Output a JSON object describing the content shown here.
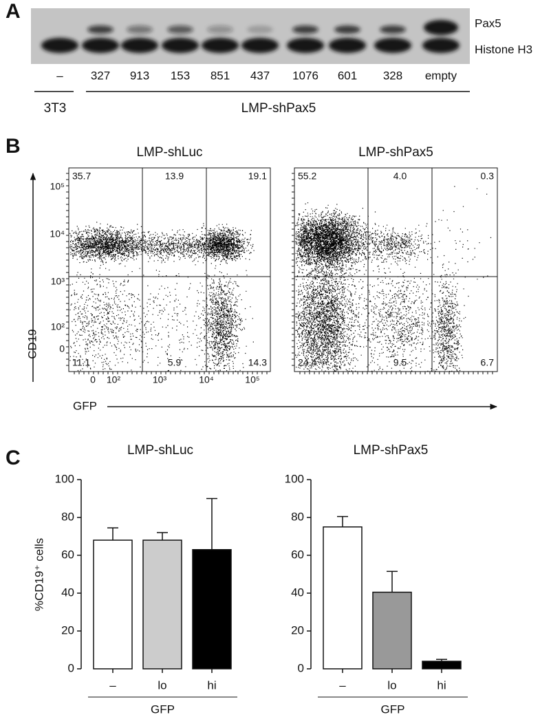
{
  "panel_a": {
    "label": "A",
    "bands": [
      "Pax5",
      "Histone H3"
    ],
    "lanes": [
      "–",
      "327",
      "913",
      "153",
      "851",
      "437",
      "1076",
      "601",
      "328",
      "empty"
    ],
    "groups": [
      "3T3",
      "LMP-shPax5"
    ]
  },
  "panel_b": {
    "label": "B",
    "axis_x": "GFP",
    "axis_y": "CD19",
    "yticks": [
      "10⁵",
      "10⁴",
      "10³",
      "10²",
      "0"
    ],
    "xticks": [
      "0",
      "10²",
      "10³",
      "10⁴",
      "10⁵"
    ],
    "plots": [
      {
        "title": "LMP-shLuc",
        "quadrants": [
          "35.7",
          "13.9",
          "19.1",
          "11.1",
          "5.9",
          "14.3"
        ]
      },
      {
        "title": "LMP-shPax5",
        "quadrants": [
          "55.2",
          "4.0",
          "0.3",
          "24.4",
          "9.5",
          "6.7"
        ]
      }
    ]
  },
  "panel_c": {
    "label": "C"
  },
  "chart_data": [
    {
      "type": "bar",
      "title": "LMP-shLuc",
      "ylabel": "%CD19⁺ cells",
      "xlabel": "GFP",
      "categories": [
        "–",
        "lo",
        "hi"
      ],
      "values": [
        68,
        68,
        63
      ],
      "errors": [
        6.5,
        4,
        27
      ],
      "colors": [
        "#ffffff",
        "#cccccc",
        "#000000"
      ],
      "ylim": [
        0,
        100
      ],
      "yticks": [
        0,
        20,
        40,
        60,
        80,
        100
      ]
    },
    {
      "type": "bar",
      "title": "LMP-shPax5",
      "xlabel": "GFP",
      "categories": [
        "–",
        "lo",
        "hi"
      ],
      "values": [
        75,
        40.5,
        4
      ],
      "errors": [
        5.5,
        11,
        1
      ],
      "colors": [
        "#ffffff",
        "#999999",
        "#000000"
      ],
      "ylim": [
        0,
        100
      ],
      "yticks": [
        0,
        20,
        40,
        60,
        80,
        100
      ]
    }
  ]
}
